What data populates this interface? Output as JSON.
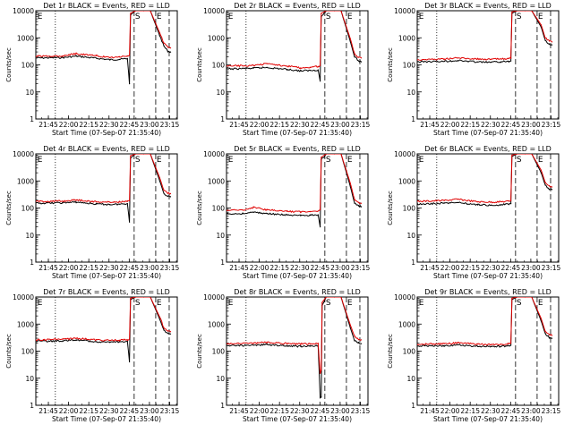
{
  "figure": {
    "start_time_label": "Start Time (07-Sep-07 21:35:40)",
    "ylabel": "Counts/sec",
    "yscale": "log",
    "ylim": [
      1,
      10000
    ],
    "xlim_minutes_after_21_35_40": [
      0,
      105
    ],
    "x_ticks": [
      {
        "label": "21:45",
        "t": 9.33
      },
      {
        "label": "22:00",
        "t": 24.33
      },
      {
        "label": "22:15",
        "t": 39.33
      },
      {
        "label": "22:30",
        "t": 54.33
      },
      {
        "label": "22:45",
        "t": 69.33
      },
      {
        "label": "23:00",
        "t": 84.33
      },
      {
        "label": "23:15",
        "t": 99.33
      }
    ],
    "y_ticks": [
      {
        "label": "1",
        "v": 1
      },
      {
        "label": "10",
        "v": 10
      },
      {
        "label": "100",
        "v": 100
      },
      {
        "label": "1000",
        "v": 1000
      },
      {
        "label": "10000",
        "v": 10000
      }
    ],
    "series_colors": {
      "events": "#000000",
      "lld": "#e00000"
    },
    "markers": [
      {
        "label": "E",
        "t": 0.5,
        "style": "text"
      },
      {
        "label": "",
        "t": 14.5,
        "style": "dotted"
      },
      {
        "label": "S",
        "t": 73,
        "style": "dashed"
      },
      {
        "label": "E",
        "t": 89,
        "style": "dashed"
      }
    ],
    "extra_dashed_t": [
      99
    ]
  },
  "chart_data": [
    {
      "type": "line",
      "title": "Det 1r BLACK = Events, RED = LLD",
      "xlabel": "Start Time (07-Sep-07 21:35:40)",
      "ylabel": "Counts/sec",
      "x": [
        0,
        20,
        30,
        45,
        55,
        62,
        68,
        69.5,
        70.3,
        74,
        80,
        85,
        92,
        95,
        98,
        100
      ],
      "series": [
        {
          "name": "BLACK = Events",
          "values": [
            180,
            185,
            210,
            175,
            155,
            160,
            170,
            20,
            7000,
            10000,
            10000,
            10000,
            1200,
            500,
            320,
            300
          ]
        },
        {
          "name": "RED = LLD",
          "values": [
            210,
            215,
            260,
            215,
            185,
            195,
            210,
            230,
            8000,
            10000,
            10000,
            10000,
            1500,
            650,
            450,
            420
          ]
        }
      ]
    },
    {
      "type": "line",
      "title": "Det 2r BLACK = Events, RED = LLD",
      "xlabel": "Start Time (07-Sep-07 21:35:40)",
      "ylabel": "Counts/sec",
      "x": [
        0,
        20,
        30,
        45,
        55,
        62,
        68,
        69.5,
        70.3,
        74,
        80,
        85,
        92,
        95,
        98,
        100
      ],
      "series": [
        {
          "name": "BLACK = Events",
          "values": [
            70,
            75,
            80,
            68,
            60,
            62,
            65,
            25,
            6000,
            10000,
            10000,
            10000,
            700,
            200,
            140,
            130
          ]
        },
        {
          "name": "RED = LLD",
          "values": [
            90,
            95,
            110,
            90,
            78,
            82,
            88,
            95,
            8000,
            10000,
            10000,
            10000,
            900,
            250,
            190,
            180
          ]
        }
      ]
    },
    {
      "type": "line",
      "title": "Det 3r BLACK = Events, RED = LLD",
      "xlabel": "Start Time (07-Sep-07 21:35:40)",
      "ylabel": "Counts/sec",
      "x": [
        0,
        20,
        30,
        45,
        55,
        62,
        68,
        69.5,
        70.3,
        74,
        80,
        85,
        92,
        95,
        98,
        100
      ],
      "series": [
        {
          "name": "BLACK = Events",
          "values": [
            130,
            135,
            145,
            128,
            125,
            130,
            135,
            140,
            8000,
            10000,
            10000,
            10000,
            2500,
            800,
            600,
            550
          ]
        },
        {
          "name": "RED = LLD",
          "values": [
            155,
            165,
            180,
            165,
            160,
            165,
            170,
            175,
            9000,
            10000,
            10000,
            10000,
            3000,
            1000,
            750,
            700
          ]
        }
      ]
    },
    {
      "type": "line",
      "title": "Det 4r BLACK = Events, RED = LLD",
      "xlabel": "Start Time (07-Sep-07 21:35:40)",
      "ylabel": "Counts/sec",
      "x": [
        0,
        20,
        30,
        45,
        55,
        62,
        68,
        69.5,
        70.3,
        74,
        80,
        85,
        92,
        95,
        98,
        100
      ],
      "series": [
        {
          "name": "BLACK = Events",
          "values": [
            150,
            155,
            165,
            140,
            135,
            138,
            145,
            30,
            7000,
            10000,
            10000,
            10000,
            1000,
            350,
            270,
            260
          ]
        },
        {
          "name": "RED = LLD",
          "values": [
            175,
            180,
            200,
            170,
            165,
            168,
            175,
            185,
            8500,
            10000,
            10000,
            10000,
            1300,
            450,
            350,
            340
          ]
        }
      ]
    },
    {
      "type": "line",
      "title": "Det 5r BLACK = Events, RED = LLD",
      "xlabel": "Start Time (07-Sep-07 21:35:40)",
      "ylabel": "Counts/sec",
      "x": [
        0,
        12,
        20,
        30,
        45,
        55,
        62,
        68,
        69.5,
        70.3,
        74,
        80,
        85,
        92,
        95,
        98,
        100
      ],
      "series": [
        {
          "name": "BLACK = Events",
          "values": [
            60,
            62,
            70,
            62,
            55,
            52,
            54,
            56,
            20,
            6000,
            10000,
            10000,
            10000,
            600,
            150,
            120,
            110
          ]
        },
        {
          "name": "RED = LLD",
          "values": [
            80,
            85,
            105,
            85,
            75,
            72,
            75,
            78,
            85,
            7500,
            10000,
            10000,
            10000,
            800,
            200,
            160,
            150
          ]
        }
      ]
    },
    {
      "type": "line",
      "title": "Det 6r BLACK = Events, RED = LLD",
      "xlabel": "Start Time (07-Sep-07 21:35:40)",
      "ylabel": "Counts/sec",
      "x": [
        0,
        20,
        30,
        45,
        55,
        62,
        68,
        69.5,
        70.3,
        74,
        80,
        85,
        92,
        95,
        98,
        100
      ],
      "series": [
        {
          "name": "BLACK = Events",
          "values": [
            140,
            150,
            160,
            130,
            128,
            132,
            138,
            145,
            8000,
            10000,
            10000,
            10000,
            2000,
            700,
            500,
            480
          ]
        },
        {
          "name": "RED = LLD",
          "values": [
            175,
            190,
            210,
            170,
            165,
            170,
            178,
            185,
            9000,
            10000,
            10000,
            10000,
            2500,
            900,
            650,
            600
          ]
        }
      ]
    },
    {
      "type": "line",
      "title": "Det 7r BLACK = Events, RED = LLD",
      "xlabel": "Start Time (07-Sep-07 21:35:40)",
      "ylabel": "Counts/sec",
      "x": [
        0,
        20,
        30,
        45,
        55,
        62,
        68,
        69.5,
        70.3,
        74,
        80,
        85,
        92,
        95,
        98,
        100
      ],
      "series": [
        {
          "name": "BLACK = Events",
          "values": [
            230,
            240,
            260,
            225,
            215,
            220,
            230,
            40,
            8000,
            10000,
            10000,
            10000,
            1500,
            600,
            450,
            430
          ]
        },
        {
          "name": "RED = LLD",
          "values": [
            260,
            275,
            300,
            260,
            250,
            255,
            265,
            280,
            9000,
            10000,
            10000,
            10000,
            1800,
            750,
            550,
            520
          ]
        }
      ]
    },
    {
      "type": "line",
      "title": "Det 8r BLACK = Events, RED = LLD",
      "xlabel": "Start Time (07-Sep-07 21:35:40)",
      "ylabel": "Counts/sec",
      "x": [
        0,
        20,
        30,
        45,
        55,
        62,
        68,
        69.5,
        70.3,
        71,
        74,
        80,
        85,
        92,
        95,
        98,
        100
      ],
      "series": [
        {
          "name": "BLACK = Events",
          "values": [
            160,
            165,
            175,
            155,
            150,
            152,
            160,
            2,
            2,
            5000,
            10000,
            10000,
            10000,
            700,
            250,
            200,
            190
          ]
        },
        {
          "name": "RED = LLD",
          "values": [
            190,
            200,
            215,
            190,
            185,
            188,
            195,
            15,
            20,
            6000,
            10000,
            10000,
            10000,
            900,
            350,
            270,
            260
          ]
        }
      ]
    },
    {
      "type": "line",
      "title": "Det 9r BLACK = Events, RED = LLD",
      "xlabel": "Start Time (07-Sep-07 21:35:40)",
      "ylabel": "Counts/sec",
      "x": [
        0,
        20,
        30,
        45,
        55,
        62,
        68,
        69.5,
        70.3,
        74,
        80,
        85,
        92,
        95,
        98,
        100
      ],
      "series": [
        {
          "name": "BLACK = Events",
          "values": [
            155,
            160,
            170,
            150,
            148,
            150,
            158,
            165,
            8000,
            10000,
            10000,
            10000,
            1300,
            450,
            320,
            300
          ]
        },
        {
          "name": "RED = LLD",
          "values": [
            180,
            190,
            205,
            180,
            175,
            178,
            185,
            195,
            9000,
            10000,
            10000,
            10000,
            1600,
            550,
            400,
            380
          ]
        }
      ]
    }
  ]
}
